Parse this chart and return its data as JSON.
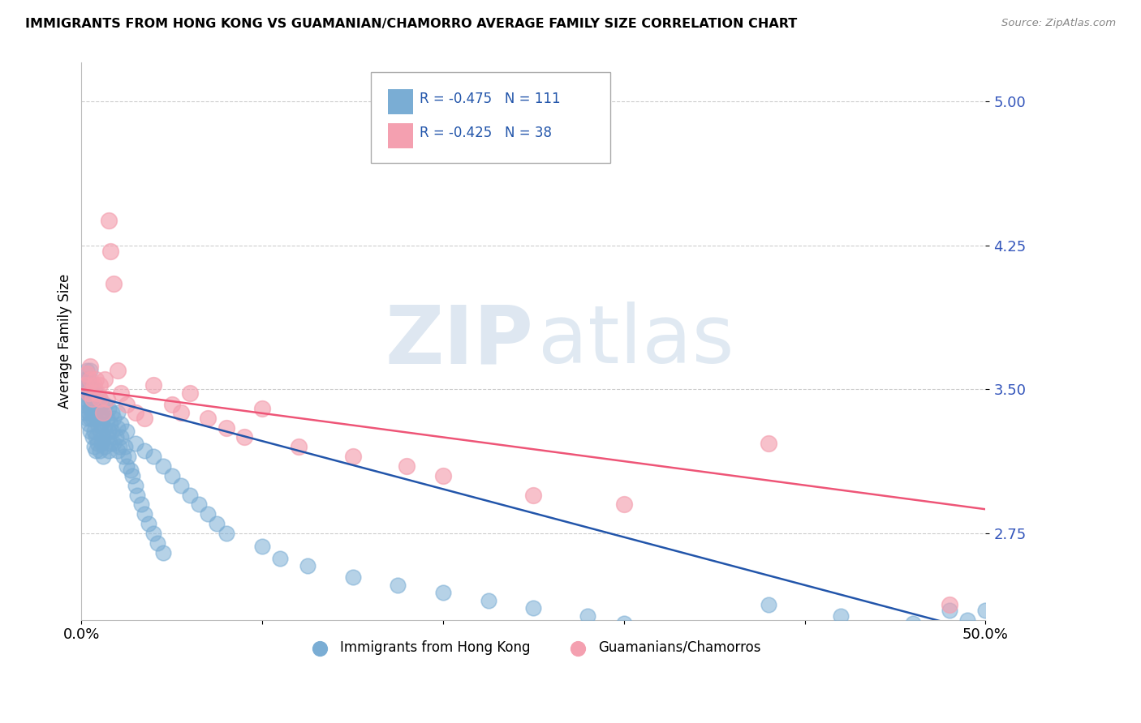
{
  "title": "IMMIGRANTS FROM HONG KONG VS GUAMANIAN/CHAMORRO AVERAGE FAMILY SIZE CORRELATION CHART",
  "source": "Source: ZipAtlas.com",
  "ylabel": "Average Family Size",
  "yticks": [
    2.75,
    3.5,
    4.25,
    5.0
  ],
  "xlim": [
    0.0,
    0.5
  ],
  "ylim": [
    2.3,
    5.2
  ],
  "legend1_r": "R = -0.475",
  "legend1_n": "N = 111",
  "legend2_r": "R = -0.425",
  "legend2_n": "N = 38",
  "series1_color": "#7aadd4",
  "series2_color": "#f4a0b0",
  "line1_color": "#2255aa",
  "line2_color": "#ee5577",
  "watermark_zip": "ZIP",
  "watermark_atlas": "atlas",
  "series1_name": "Immigrants from Hong Kong",
  "series2_name": "Guamanians/Chamorros",
  "blue_intercept": 3.48,
  "blue_slope": -2.5,
  "pink_intercept": 3.5,
  "pink_slope": -1.25,
  "blue_x": [
    0.001,
    0.001,
    0.002,
    0.002,
    0.002,
    0.003,
    0.003,
    0.003,
    0.003,
    0.004,
    0.004,
    0.004,
    0.004,
    0.004,
    0.005,
    0.005,
    0.005,
    0.005,
    0.005,
    0.005,
    0.006,
    0.006,
    0.006,
    0.006,
    0.007,
    0.007,
    0.007,
    0.007,
    0.007,
    0.008,
    0.008,
    0.008,
    0.008,
    0.008,
    0.009,
    0.009,
    0.009,
    0.009,
    0.01,
    0.01,
    0.01,
    0.01,
    0.011,
    0.011,
    0.011,
    0.012,
    0.012,
    0.012,
    0.013,
    0.013,
    0.013,
    0.014,
    0.014,
    0.015,
    0.015,
    0.015,
    0.016,
    0.016,
    0.017,
    0.017,
    0.018,
    0.018,
    0.019,
    0.02,
    0.02,
    0.021,
    0.022,
    0.023,
    0.024,
    0.025,
    0.026,
    0.027,
    0.028,
    0.03,
    0.031,
    0.033,
    0.035,
    0.037,
    0.04,
    0.042,
    0.045,
    0.02,
    0.022,
    0.025,
    0.03,
    0.035,
    0.04,
    0.045,
    0.05,
    0.055,
    0.06,
    0.065,
    0.07,
    0.075,
    0.08,
    0.1,
    0.11,
    0.125,
    0.15,
    0.175,
    0.2,
    0.225,
    0.25,
    0.28,
    0.3,
    0.38,
    0.42,
    0.46,
    0.48,
    0.49,
    0.5
  ],
  "blue_y": [
    3.5,
    3.42,
    3.55,
    3.45,
    3.38,
    3.6,
    3.48,
    3.52,
    3.35,
    3.55,
    3.42,
    3.48,
    3.38,
    3.32,
    3.45,
    3.52,
    3.35,
    3.6,
    3.28,
    3.4,
    3.48,
    3.35,
    3.25,
    3.42,
    3.5,
    3.38,
    3.28,
    3.45,
    3.2,
    3.42,
    3.35,
    3.48,
    3.25,
    3.18,
    3.4,
    3.32,
    3.22,
    3.45,
    3.38,
    3.28,
    3.18,
    3.45,
    3.32,
    3.22,
    3.42,
    3.35,
    3.25,
    3.15,
    3.3,
    3.42,
    3.2,
    3.35,
    3.25,
    3.4,
    3.28,
    3.18,
    3.32,
    3.22,
    3.38,
    3.28,
    3.22,
    3.35,
    3.25,
    3.18,
    3.3,
    3.2,
    3.25,
    3.15,
    3.2,
    3.1,
    3.15,
    3.08,
    3.05,
    3.0,
    2.95,
    2.9,
    2.85,
    2.8,
    2.75,
    2.7,
    2.65,
    3.38,
    3.32,
    3.28,
    3.22,
    3.18,
    3.15,
    3.1,
    3.05,
    3.0,
    2.95,
    2.9,
    2.85,
    2.8,
    2.75,
    2.68,
    2.62,
    2.58,
    2.52,
    2.48,
    2.44,
    2.4,
    2.36,
    2.32,
    2.28,
    2.38,
    2.32,
    2.28,
    2.35,
    2.3,
    2.35
  ],
  "pink_x": [
    0.002,
    0.003,
    0.004,
    0.005,
    0.005,
    0.006,
    0.007,
    0.008,
    0.009,
    0.01,
    0.01,
    0.012,
    0.013,
    0.014,
    0.015,
    0.016,
    0.018,
    0.02,
    0.022,
    0.025,
    0.03,
    0.035,
    0.04,
    0.05,
    0.055,
    0.06,
    0.07,
    0.08,
    0.09,
    0.1,
    0.12,
    0.15,
    0.18,
    0.2,
    0.25,
    0.3,
    0.48,
    0.38
  ],
  "pink_y": [
    3.52,
    3.58,
    3.48,
    3.55,
    3.62,
    3.45,
    3.52,
    3.55,
    3.48,
    3.52,
    3.45,
    3.38,
    3.55,
    3.45,
    4.38,
    4.22,
    4.05,
    3.6,
    3.48,
    3.42,
    3.38,
    3.35,
    3.52,
    3.42,
    3.38,
    3.48,
    3.35,
    3.3,
    3.25,
    3.4,
    3.2,
    3.15,
    3.1,
    3.05,
    2.95,
    2.9,
    2.38,
    3.22
  ]
}
